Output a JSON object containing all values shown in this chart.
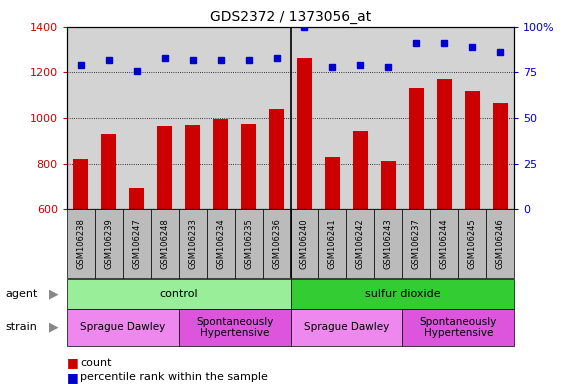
{
  "title": "GDS2372 / 1373056_at",
  "samples": [
    "GSM106238",
    "GSM106239",
    "GSM106247",
    "GSM106248",
    "GSM106233",
    "GSM106234",
    "GSM106235",
    "GSM106236",
    "GSM106240",
    "GSM106241",
    "GSM106242",
    "GSM106243",
    "GSM106237",
    "GSM106244",
    "GSM106245",
    "GSM106246"
  ],
  "counts": [
    820,
    930,
    695,
    965,
    970,
    998,
    975,
    1040,
    1265,
    830,
    945,
    810,
    1130,
    1170,
    1120,
    1065
  ],
  "percentile": [
    79,
    82,
    76,
    83,
    82,
    82,
    82,
    83,
    100,
    78,
    79,
    78,
    91,
    91,
    89,
    86
  ],
  "ylim_left": [
    600,
    1400
  ],
  "ylim_right": [
    0,
    100
  ],
  "yticks_left": [
    600,
    800,
    1000,
    1200,
    1400
  ],
  "yticks_right": [
    0,
    25,
    50,
    75,
    100
  ],
  "bar_color": "#cc0000",
  "dot_color": "#0000cc",
  "agent_groups": [
    {
      "label": "control",
      "start": 0,
      "end": 8,
      "color": "#99ee99"
    },
    {
      "label": "sulfur dioxide",
      "start": 8,
      "end": 16,
      "color": "#33cc33"
    }
  ],
  "strain_groups": [
    {
      "label": "Sprague Dawley",
      "start": 0,
      "end": 4,
      "color": "#ee88ee"
    },
    {
      "label": "Spontaneously\nHypertensive",
      "start": 4,
      "end": 8,
      "color": "#dd55dd"
    },
    {
      "label": "Sprague Dawley",
      "start": 8,
      "end": 12,
      "color": "#ee88ee"
    },
    {
      "label": "Spontaneously\nHypertensive",
      "start": 12,
      "end": 16,
      "color": "#dd55dd"
    }
  ],
  "agent_label": "agent",
  "strain_label": "strain",
  "legend_count_color": "#cc0000",
  "legend_dot_color": "#0000cc",
  "grid_color": "#000000",
  "bg_color": "#d3d3d3",
  "label_area_color": "#bbbbbb",
  "fig_width": 5.81,
  "fig_height": 3.84,
  "dpi": 100
}
